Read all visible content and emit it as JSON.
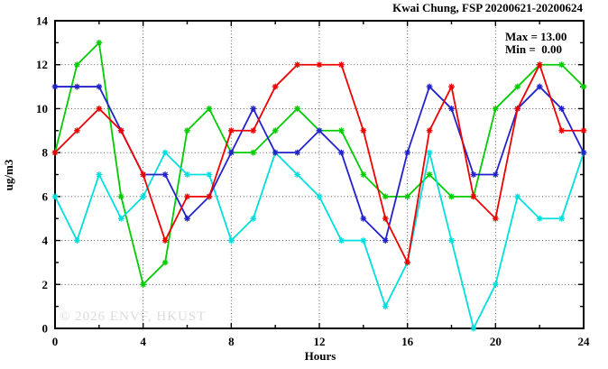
{
  "title": "Kwai Chung, FSP 20200621-20200624",
  "stats": {
    "max": "Max = 13.00",
    "min": "Min =  0.00"
  },
  "watermark": "© 2026 ENVF, HKUST",
  "chart_data": {
    "type": "line",
    "title": "Kwai Chung, FSP 20200621-20200624",
    "xlabel": "Hours",
    "ylabel": "ug/m3",
    "xlim": [
      0,
      24
    ],
    "ylim": [
      0,
      14
    ],
    "grid": "dotted; vertical every 4 hours, horizontal every 2 units",
    "legend_position": "none",
    "x_major_ticks": [
      0,
      4,
      8,
      12,
      16,
      20,
      24
    ],
    "x_tick_labels": [
      "0",
      "4",
      "8",
      "12",
      "16",
      "20",
      "24"
    ],
    "x_minor_step": 2,
    "y_major_ticks": [
      0,
      2,
      4,
      6,
      8,
      10,
      12,
      14
    ],
    "y_tick_labels": [
      "0",
      "2",
      "4",
      "6",
      "8",
      "10",
      "12",
      "14"
    ],
    "y_minor_step": 1,
    "x": [
      0,
      1,
      2,
      3,
      4,
      5,
      6,
      7,
      8,
      9,
      10,
      11,
      12,
      13,
      14,
      15,
      16,
      17,
      18,
      19,
      20,
      21,
      22,
      23,
      24
    ],
    "marker": "asterisk",
    "series": [
      {
        "name": "green-series",
        "color": "#00cc00",
        "values": [
          8,
          12,
          13,
          6,
          2,
          3,
          9,
          10,
          8,
          8,
          9,
          10,
          9,
          9,
          7,
          6,
          6,
          7,
          6,
          6,
          10,
          11,
          12,
          12,
          11
        ]
      },
      {
        "name": "cyan-series",
        "color": "#00dede",
        "values": [
          6,
          4,
          7,
          5,
          6,
          8,
          7,
          7,
          4,
          5,
          8,
          7,
          6,
          4,
          4,
          1,
          3,
          8,
          4,
          0,
          2,
          6,
          5,
          5,
          8
        ]
      },
      {
        "name": "blue-series",
        "color": "#2222cc",
        "values": [
          11,
          11,
          11,
          9,
          7,
          7,
          5,
          6,
          8,
          10,
          8,
          8,
          9,
          8,
          5,
          4,
          8,
          11,
          10,
          7,
          7,
          10,
          11,
          10,
          8
        ]
      },
      {
        "name": "red-series",
        "color": "#ee0000",
        "values": [
          8,
          9,
          10,
          9,
          7,
          4,
          6,
          6,
          9,
          9,
          11,
          12,
          12,
          12,
          9,
          5,
          3,
          9,
          11,
          6,
          5,
          10,
          12,
          9,
          9
        ]
      }
    ],
    "annotations": [
      "Max = 13.00",
      "Min =  0.00"
    ],
    "stats_shown": {
      "max": 13.0,
      "min": 0.0
    }
  }
}
